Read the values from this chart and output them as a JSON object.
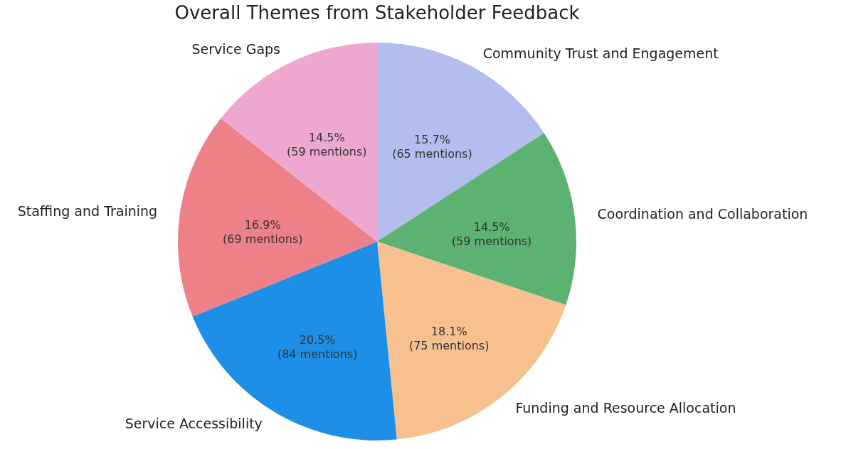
{
  "chart_data": {
    "type": "pie",
    "title": "Overall Themes from Stakeholder Feedback",
    "categories": [
      "Community Trust and Engagement",
      "Coordination and Collaboration",
      "Funding and Resource Allocation",
      "Service Accessibility",
      "Staffing and Training",
      "Service Gaps"
    ],
    "values": [
      65,
      59,
      75,
      84,
      69,
      59
    ],
    "value_labels": [
      "15.7% (65 mentions)",
      "14.5% (59 mentions)",
      "18.1% (75 mentions)",
      "20.5% (84 mentions)",
      "16.9% (69 mentions)",
      "14.5% (59 mentions)"
    ],
    "colors": [
      "#b3bdee",
      "#5bb271",
      "#f7c08f",
      "#1e8fe6",
      "#ee8088",
      "#eea8d0"
    ]
  }
}
